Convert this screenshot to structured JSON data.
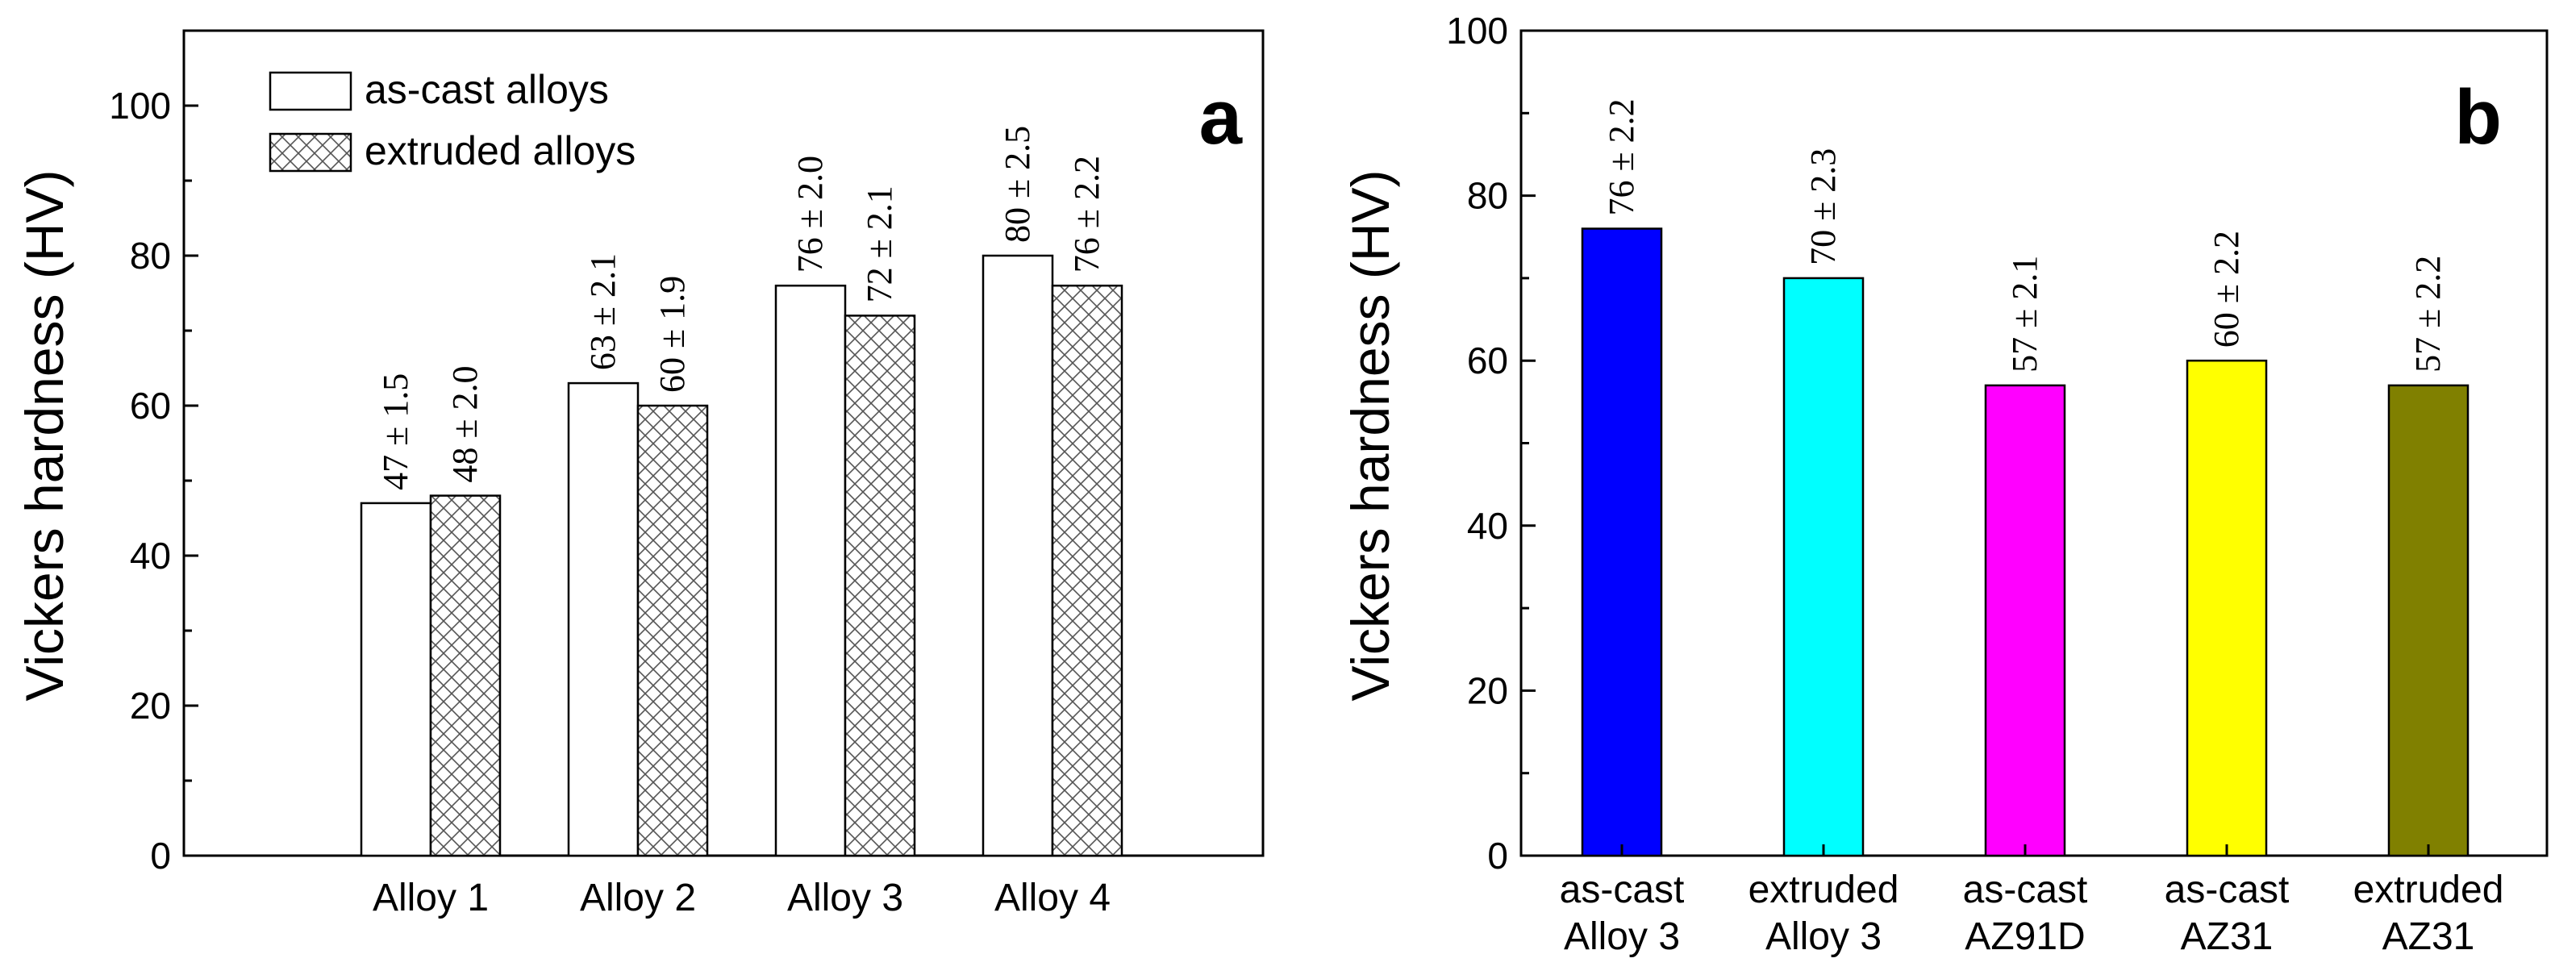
{
  "chart_data": [
    {
      "panel": "a",
      "type": "bar",
      "ylabel": "Vickers hardness (HV)",
      "xlabel": "",
      "ylim": [
        0,
        110
      ],
      "yticks": [
        0,
        20,
        40,
        60,
        80,
        100
      ],
      "categories": [
        "Alloy 1",
        "Alloy 2",
        "Alloy 3",
        "Alloy 4"
      ],
      "series": [
        {
          "name": "as-cast alloys",
          "pattern": "none",
          "values": [
            47,
            63,
            76,
            80
          ],
          "labels": [
            "47 ± 1.5",
            "63 ± 2.1",
            "76 ± 2.0",
            "80 ± 2.5"
          ]
        },
        {
          "name": "extruded alloys",
          "pattern": "crosshatch",
          "values": [
            48,
            60,
            72,
            76
          ],
          "labels": [
            "48 ± 2.0",
            "60 ± 1.9",
            "72 ± 2.1",
            "76 ± 2.2"
          ]
        }
      ],
      "legend_position": "top-left",
      "grid": false
    },
    {
      "panel": "b",
      "type": "bar",
      "ylabel": "Vickers hardness (HV)",
      "xlabel": "",
      "ylim": [
        0,
        100
      ],
      "yticks": [
        0,
        20,
        40,
        60,
        80,
        100
      ],
      "categories": [
        [
          "as-cast",
          "Alloy 3"
        ],
        [
          "extruded",
          "Alloy 3"
        ],
        [
          "as-cast",
          "AZ91D"
        ],
        [
          "as-cast",
          "AZ31"
        ],
        [
          "extruded",
          "AZ31"
        ]
      ],
      "values": [
        76,
        70,
        57,
        60,
        57
      ],
      "labels": [
        "76 ± 2.2",
        "70 ± 2.3",
        "57 ± 2.1",
        "60 ± 2.2",
        "57 ± 2.2"
      ],
      "colors": [
        "#0000ff",
        "#00ffff",
        "#ff00ff",
        "#ffff00",
        "#808000"
      ],
      "grid": false
    }
  ]
}
